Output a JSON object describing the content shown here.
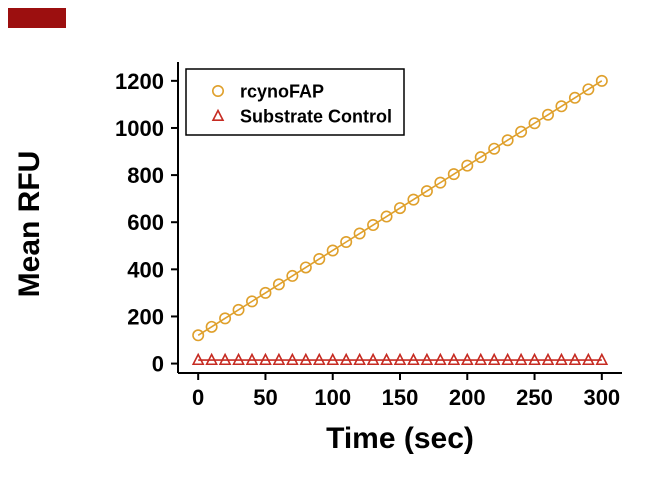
{
  "colors": {
    "background": "#FFFFFF",
    "axis": "#000000",
    "brand_mark": "#9C0F0F"
  },
  "chart_data": {
    "type": "scatter",
    "title": "",
    "xlabel": "Time (sec)",
    "ylabel": "Mean RFU",
    "xlim": [
      -15,
      315
    ],
    "ylim": [
      -40,
      1280
    ],
    "x_ticks": [
      0,
      50,
      100,
      150,
      200,
      250,
      300
    ],
    "y_ticks": [
      0,
      200,
      400,
      600,
      800,
      1000,
      1200
    ],
    "grid": false,
    "legend_position": "top-left",
    "x": [
      0,
      10,
      20,
      30,
      40,
      50,
      60,
      70,
      80,
      90,
      100,
      110,
      120,
      130,
      140,
      150,
      160,
      170,
      180,
      190,
      200,
      210,
      220,
      230,
      240,
      250,
      260,
      270,
      280,
      290,
      300
    ],
    "series": [
      {
        "name": "rcynoFAP",
        "marker": "circle",
        "line": true,
        "color": "#DFA02C",
        "values": [
          120,
          156,
          192,
          228,
          264,
          300,
          336,
          372,
          408,
          444,
          480,
          516,
          552,
          588,
          624,
          660,
          696,
          732,
          768,
          804,
          840,
          876,
          912,
          948,
          984,
          1020,
          1056,
          1092,
          1128,
          1164,
          1200
        ]
      },
      {
        "name": "Substrate Control",
        "marker": "triangle",
        "line": true,
        "color": "#C62B22",
        "values": [
          15,
          15,
          15,
          15,
          15,
          15,
          15,
          15,
          15,
          15,
          15,
          15,
          15,
          15,
          15,
          15,
          15,
          15,
          15,
          15,
          15,
          15,
          15,
          15,
          15,
          15,
          15,
          15,
          15,
          15,
          15
        ]
      }
    ]
  }
}
